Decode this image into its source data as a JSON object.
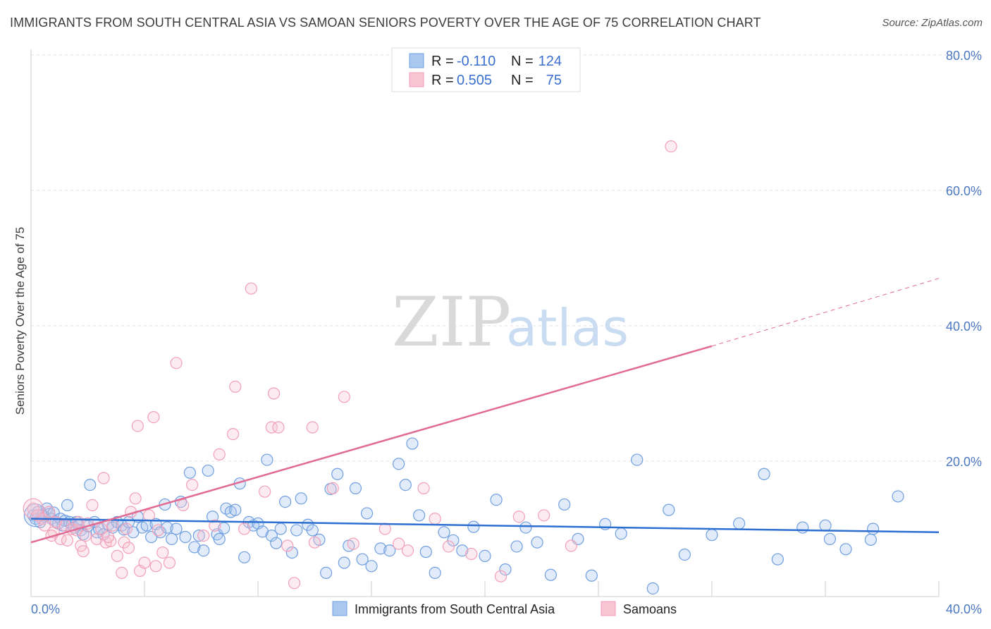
{
  "header": {
    "title": "IMMIGRANTS FROM SOUTH CENTRAL ASIA VS SAMOAN SENIORS POVERTY OVER THE AGE OF 75 CORRELATION CHART",
    "source": "Source: ZipAtlas.com"
  },
  "watermark": {
    "zip": "ZIP",
    "atlas": "atlas"
  },
  "legend": {
    "rows": [
      {
        "r_label": "R =",
        "r_value": "-0.110",
        "n_label": "N =",
        "n_value": "124"
      },
      {
        "r_label": "R =",
        "r_value": "0.505",
        "n_label": "N =",
        "n_value": "75"
      }
    ]
  },
  "chart_data": {
    "type": "scatter",
    "title": "IMMIGRANTS FROM SOUTH CENTRAL ASIA VS SAMOAN SENIORS POVERTY OVER THE AGE OF 75 CORRELATION CHART",
    "xlabel": "",
    "ylabel": "Seniors Poverty Over the Age of 75",
    "xlim": [
      0,
      40
    ],
    "ylim": [
      0,
      80
    ],
    "x_tick_labels": [
      "0.0%",
      "40.0%"
    ],
    "y_tick_labels": [
      "80.0%",
      "60.0%",
      "40.0%",
      "20.0%"
    ],
    "y_ticks": [
      80,
      60,
      40,
      20
    ],
    "grid": true,
    "legend_position": "top-center",
    "colors": {
      "blue": "#6f9fe0",
      "blue_fill": "#a9c7ef",
      "pink": "#f2a0b8",
      "pink_fill": "#f7c5d4",
      "blue_line": "#2c6fd1",
      "pink_line": "#e26b93"
    },
    "series": [
      {
        "name": "Immigrants from South Central Asia",
        "color": "#6f9fe0",
        "trend": {
          "x": [
            0,
            40
          ],
          "y": [
            11.5,
            9.5
          ]
        },
        "points": [
          [
            0.1,
            12.0
          ],
          [
            0.2,
            11.5
          ],
          [
            0.3,
            12.5
          ],
          [
            0.4,
            11.0
          ],
          [
            0.5,
            12.0
          ],
          [
            0.6,
            11.8
          ],
          [
            0.7,
            13.0
          ],
          [
            0.8,
            12.2
          ],
          [
            0.9,
            11.5
          ],
          [
            1.0,
            12.4
          ],
          [
            1.1,
            11.0
          ],
          [
            1.2,
            10.8
          ],
          [
            1.3,
            11.5
          ],
          [
            1.4,
            10.5
          ],
          [
            1.5,
            11.2
          ],
          [
            1.6,
            13.5
          ],
          [
            1.7,
            11.0
          ],
          [
            1.8,
            10.6
          ],
          [
            1.9,
            10.2
          ],
          [
            2.0,
            11.0
          ],
          [
            2.1,
            10.5
          ],
          [
            2.2,
            9.8
          ],
          [
            2.3,
            9.2
          ],
          [
            2.5,
            10.4
          ],
          [
            2.6,
            16.5
          ],
          [
            2.8,
            11.0
          ],
          [
            2.9,
            9.5
          ],
          [
            3.0,
            10.0
          ],
          [
            3.2,
            9.2
          ],
          [
            3.4,
            10.6
          ],
          [
            3.6,
            10.2
          ],
          [
            3.8,
            11.0
          ],
          [
            4.0,
            10.5
          ],
          [
            4.1,
            9.9
          ],
          [
            4.3,
            11.0
          ],
          [
            4.5,
            9.5
          ],
          [
            4.7,
            11.8
          ],
          [
            4.9,
            10.2
          ],
          [
            5.1,
            10.5
          ],
          [
            5.3,
            8.8
          ],
          [
            5.5,
            10.7
          ],
          [
            5.7,
            9.5
          ],
          [
            5.9,
            13.6
          ],
          [
            6.0,
            10.2
          ],
          [
            6.2,
            8.5
          ],
          [
            6.4,
            10.0
          ],
          [
            6.6,
            14.0
          ],
          [
            6.8,
            8.8
          ],
          [
            7.0,
            18.3
          ],
          [
            7.2,
            7.3
          ],
          [
            7.4,
            9.0
          ],
          [
            7.6,
            6.8
          ],
          [
            7.8,
            18.6
          ],
          [
            8.0,
            11.8
          ],
          [
            8.2,
            9.2
          ],
          [
            8.3,
            8.5
          ],
          [
            8.5,
            10.1
          ],
          [
            8.6,
            13.0
          ],
          [
            8.8,
            12.5
          ],
          [
            9.0,
            12.8
          ],
          [
            9.2,
            16.7
          ],
          [
            9.4,
            5.8
          ],
          [
            9.6,
            11.0
          ],
          [
            9.8,
            10.5
          ],
          [
            10.0,
            10.8
          ],
          [
            10.2,
            9.6
          ],
          [
            10.4,
            20.2
          ],
          [
            10.6,
            9.0
          ],
          [
            10.8,
            7.9
          ],
          [
            11.0,
            10.0
          ],
          [
            11.2,
            14.0
          ],
          [
            11.5,
            6.5
          ],
          [
            11.7,
            9.8
          ],
          [
            11.9,
            14.5
          ],
          [
            12.2,
            10.6
          ],
          [
            12.4,
            9.8
          ],
          [
            12.7,
            8.4
          ],
          [
            13.0,
            3.5
          ],
          [
            13.2,
            15.9
          ],
          [
            13.5,
            18.1
          ],
          [
            13.8,
            5.0
          ],
          [
            14.0,
            7.5
          ],
          [
            14.3,
            16.0
          ],
          [
            14.6,
            5.5
          ],
          [
            14.8,
            12.3
          ],
          [
            15.0,
            4.5
          ],
          [
            15.4,
            7.1
          ],
          [
            15.8,
            6.8
          ],
          [
            16.2,
            19.6
          ],
          [
            16.5,
            16.5
          ],
          [
            16.8,
            22.6
          ],
          [
            17.1,
            12.0
          ],
          [
            17.4,
            6.6
          ],
          [
            17.8,
            3.5
          ],
          [
            18.2,
            9.5
          ],
          [
            18.6,
            8.3
          ],
          [
            19.0,
            6.8
          ],
          [
            19.5,
            10.3
          ],
          [
            20.0,
            6.0
          ],
          [
            20.5,
            14.3
          ],
          [
            20.9,
            4.0
          ],
          [
            21.4,
            7.4
          ],
          [
            21.8,
            10.2
          ],
          [
            22.3,
            8.0
          ],
          [
            22.9,
            3.2
          ],
          [
            23.5,
            13.6
          ],
          [
            24.1,
            8.5
          ],
          [
            24.7,
            3.1
          ],
          [
            25.3,
            10.7
          ],
          [
            26.0,
            9.3
          ],
          [
            26.7,
            20.2
          ],
          [
            27.4,
            1.2
          ],
          [
            28.1,
            12.8
          ],
          [
            28.8,
            6.2
          ],
          [
            30.0,
            9.1
          ],
          [
            31.2,
            10.8
          ],
          [
            32.3,
            18.1
          ],
          [
            32.9,
            5.5
          ],
          [
            34.0,
            10.2
          ],
          [
            35.0,
            10.5
          ],
          [
            35.2,
            8.5
          ],
          [
            35.9,
            7.0
          ],
          [
            37.0,
            8.4
          ],
          [
            37.1,
            10.0
          ],
          [
            38.2,
            14.8
          ]
        ]
      },
      {
        "name": "Samoans",
        "color": "#f2a0b8",
        "trend": {
          "x": [
            0,
            30
          ],
          "y": [
            8.0,
            37.0
          ],
          "dashed_to": {
            "x": 40,
            "y": 47.0
          }
        },
        "points": [
          [
            0.1,
            13.0
          ],
          [
            0.3,
            12.0
          ],
          [
            0.5,
            11.5
          ],
          [
            0.6,
            10.5
          ],
          [
            0.8,
            12.5
          ],
          [
            1.0,
            9.5
          ],
          [
            1.1,
            11.0
          ],
          [
            1.3,
            8.5
          ],
          [
            1.5,
            10.5
          ],
          [
            1.6,
            8.3
          ],
          [
            1.8,
            10.0
          ],
          [
            2.0,
            9.8
          ],
          [
            2.1,
            11.0
          ],
          [
            2.2,
            7.5
          ],
          [
            2.4,
            9.0
          ],
          [
            2.5,
            10.8
          ],
          [
            2.7,
            13.5
          ],
          [
            2.9,
            8.5
          ],
          [
            3.1,
            10.0
          ],
          [
            3.2,
            17.5
          ],
          [
            3.3,
            8.0
          ],
          [
            3.5,
            8.2
          ],
          [
            3.6,
            10.5
          ],
          [
            3.8,
            6.0
          ],
          [
            4.0,
            3.5
          ],
          [
            4.1,
            8.0
          ],
          [
            4.2,
            10.0
          ],
          [
            4.4,
            12.5
          ],
          [
            4.6,
            14.5
          ],
          [
            4.7,
            25.2
          ],
          [
            4.8,
            3.8
          ],
          [
            5.0,
            5.0
          ],
          [
            5.2,
            12.0
          ],
          [
            5.4,
            26.5
          ],
          [
            5.5,
            4.5
          ],
          [
            5.6,
            9.8
          ],
          [
            5.8,
            6.5
          ],
          [
            6.1,
            5.0
          ],
          [
            6.4,
            34.5
          ],
          [
            6.7,
            13.5
          ],
          [
            7.1,
            16.5
          ],
          [
            7.6,
            9.0
          ],
          [
            8.1,
            10.5
          ],
          [
            8.3,
            21.0
          ],
          [
            8.9,
            24.0
          ],
          [
            9.0,
            31.0
          ],
          [
            9.4,
            10.0
          ],
          [
            9.7,
            45.5
          ],
          [
            10.3,
            15.5
          ],
          [
            10.6,
            25.0
          ],
          [
            10.7,
            30.0
          ],
          [
            10.9,
            25.0
          ],
          [
            11.3,
            7.5
          ],
          [
            11.6,
            2.0
          ],
          [
            12.4,
            25.0
          ],
          [
            12.5,
            8.0
          ],
          [
            13.3,
            16.0
          ],
          [
            13.8,
            29.5
          ],
          [
            14.2,
            7.8
          ],
          [
            15.6,
            10.0
          ],
          [
            16.2,
            7.8
          ],
          [
            16.6,
            6.8
          ],
          [
            17.3,
            16.0
          ],
          [
            17.8,
            11.5
          ],
          [
            18.4,
            7.4
          ],
          [
            19.4,
            6.3
          ],
          [
            20.7,
            3.0
          ],
          [
            21.5,
            11.8
          ],
          [
            22.6,
            12.0
          ],
          [
            23.8,
            7.5
          ],
          [
            28.2,
            66.5
          ],
          [
            0.9,
            9.0
          ],
          [
            2.3,
            6.7
          ],
          [
            3.4,
            8.8
          ],
          [
            4.3,
            7.2
          ]
        ]
      }
    ]
  },
  "bottom_legend": {
    "items": [
      {
        "label": "Immigrants from South Central Asia",
        "color": "#a9c7ef",
        "border": "#6f9fe0"
      },
      {
        "label": "Samoans",
        "color": "#f7c5d4",
        "border": "#f2a0b8"
      }
    ]
  }
}
